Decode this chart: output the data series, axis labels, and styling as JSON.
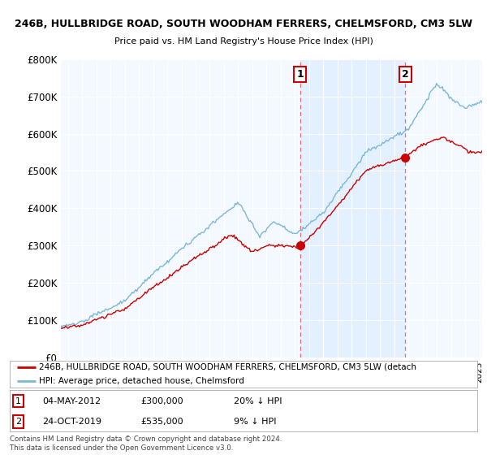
{
  "title_line1": "246B, HULLBRIDGE ROAD, SOUTH WOODHAM FERRERS, CHELMSFORD, CM3 5LW",
  "title_line2": "Price paid vs. HM Land Registry's House Price Index (HPI)",
  "ytick_labels": [
    "£0",
    "£100K",
    "£200K",
    "£300K",
    "£400K",
    "£500K",
    "£600K",
    "£700K",
    "£800K"
  ],
  "yticks": [
    0,
    100000,
    200000,
    300000,
    400000,
    500000,
    600000,
    700000,
    800000
  ],
  "ylim": [
    0,
    800000
  ],
  "xlim_start": 1995.5,
  "xlim_end": 2025.2,
  "hpi_color": "#7ab8d9",
  "price_color": "#cc0000",
  "dot_color": "#cc0000",
  "vline_color": "#e87070",
  "shade_color": "#ddeeff",
  "sale1_year": 2012.37,
  "sale1_price": 300000,
  "sale2_year": 2019.79,
  "sale2_price": 535000,
  "sale1": {
    "date": "04-MAY-2012",
    "price": "£300,000",
    "pct": "20% ↓ HPI",
    "label": "1"
  },
  "sale2": {
    "date": "24-OCT-2019",
    "price": "£535,000",
    "pct": "9% ↓ HPI",
    "label": "2"
  },
  "legend_line1": "246B, HULLBRIDGE ROAD, SOUTH WOODHAM FERRERS, CHELMSFORD, CM3 5LW (detach",
  "legend_line2": "HPI: Average price, detached house, Chelmsford",
  "footer": "Contains HM Land Registry data © Crown copyright and database right 2024.\nThis data is licensed under the Open Government Licence v3.0.",
  "background_color": "#ffffff",
  "plot_bg_color": "#f4f8ff"
}
